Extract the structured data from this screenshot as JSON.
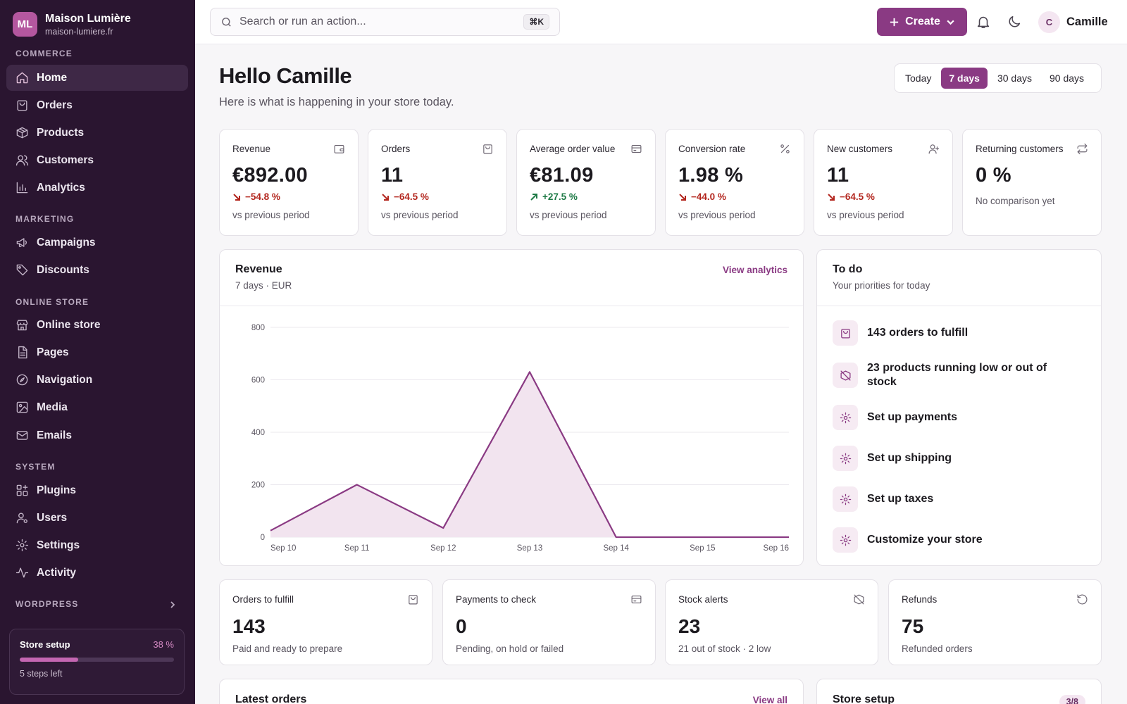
{
  "brand": {
    "initials": "ML",
    "name": "Maison Lumière",
    "domain": "maison-lumiere.fr"
  },
  "sidebar": {
    "sections": {
      "commerce": "COMMERCE",
      "marketing": "MARKETING",
      "online_store": "ONLINE STORE",
      "system": "SYSTEM",
      "wordpress": "WORDPRESS"
    },
    "items": {
      "home": "Home",
      "orders": "Orders",
      "products": "Products",
      "customers": "Customers",
      "analytics": "Analytics",
      "campaigns": "Campaigns",
      "discounts": "Discounts",
      "online_store": "Online store",
      "pages": "Pages",
      "navigation": "Navigation",
      "media": "Media",
      "emails": "Emails",
      "plugins": "Plugins",
      "users": "Users",
      "settings": "Settings",
      "activity": "Activity"
    },
    "active": "home",
    "setup": {
      "title": "Store setup",
      "percent_label": "38 %",
      "progress": 0.38,
      "steps_left": "5 steps left"
    }
  },
  "header": {
    "search_placeholder": "Search or run an action...",
    "shortcut": "⌘K",
    "create_label": "Create",
    "user_initial": "C",
    "user_name": "Camille"
  },
  "greeting": {
    "title": "Hello Camille",
    "subtitle": "Here is what is happening in your store today."
  },
  "range": {
    "options": [
      "Today",
      "7 days",
      "30 days",
      "90 days"
    ],
    "selected": "7 days"
  },
  "kpis": [
    {
      "label": "Revenue",
      "value": "€892.00",
      "delta": "−54.8 %",
      "direction": "down",
      "sub": "vs previous period",
      "icon": "wallet-icon"
    },
    {
      "label": "Orders",
      "value": "11",
      "delta": "−64.5 %",
      "direction": "down",
      "sub": "vs previous period",
      "icon": "bag-icon"
    },
    {
      "label": "Average order value",
      "value": "€81.09",
      "delta": "+27.5 %",
      "direction": "up",
      "sub": "vs previous period",
      "icon": "card-icon"
    },
    {
      "label": "Conversion rate",
      "value": "1.98 %",
      "delta": "−44.0 %",
      "direction": "down",
      "sub": "vs previous period",
      "icon": "percent-icon"
    },
    {
      "label": "New customers",
      "value": "11",
      "delta": "−64.5 %",
      "direction": "down",
      "sub": "vs previous period",
      "icon": "user-plus-icon"
    },
    {
      "label": "Returning customers",
      "value": "0 %",
      "note": "No comparison yet",
      "icon": "repeat-icon"
    }
  ],
  "revenue_card": {
    "title": "Revenue",
    "subtitle": "7 days · EUR",
    "link": "View analytics"
  },
  "chart_data": {
    "type": "area",
    "x": [
      "Sep 10",
      "Sep 11",
      "Sep 12",
      "Sep 13",
      "Sep 14",
      "Sep 15",
      "Sep 16"
    ],
    "series": [
      {
        "values": [
          25,
          200,
          35,
          630,
          0,
          0,
          0
        ]
      }
    ],
    "ylim": [
      0,
      800
    ],
    "yticks": [
      0,
      200,
      400,
      600,
      800
    ],
    "grid": true,
    "color": "#8a3a83",
    "fill": "#f2e4ef"
  },
  "todo": {
    "title": "To do",
    "subtitle": "Your priorities for today",
    "items": [
      {
        "text": "143 orders to fulfill",
        "icon": "bag-icon"
      },
      {
        "text": "23 products running low or out of stock",
        "icon": "box-off-icon"
      },
      {
        "text": "Set up payments",
        "icon": "gear-icon"
      },
      {
        "text": "Set up shipping",
        "icon": "gear-icon"
      },
      {
        "text": "Set up taxes",
        "icon": "gear-icon"
      },
      {
        "text": "Customize your store",
        "icon": "gear-icon"
      }
    ]
  },
  "stats": [
    {
      "label": "Orders to fulfill",
      "value": "143",
      "sub": "Paid and ready to prepare",
      "icon": "bag-icon"
    },
    {
      "label": "Payments to check",
      "value": "0",
      "sub": "Pending, on hold or failed",
      "icon": "card-icon"
    },
    {
      "label": "Stock alerts",
      "value": "23",
      "sub": "21 out of stock · 2 low",
      "icon": "box-off-icon"
    },
    {
      "label": "Refunds",
      "value": "75",
      "sub": "Refunded orders",
      "icon": "refund-icon"
    }
  ],
  "latest_orders": {
    "title": "Latest orders",
    "link": "View all"
  },
  "store_setup": {
    "title": "Store setup",
    "badge": "3/8"
  }
}
